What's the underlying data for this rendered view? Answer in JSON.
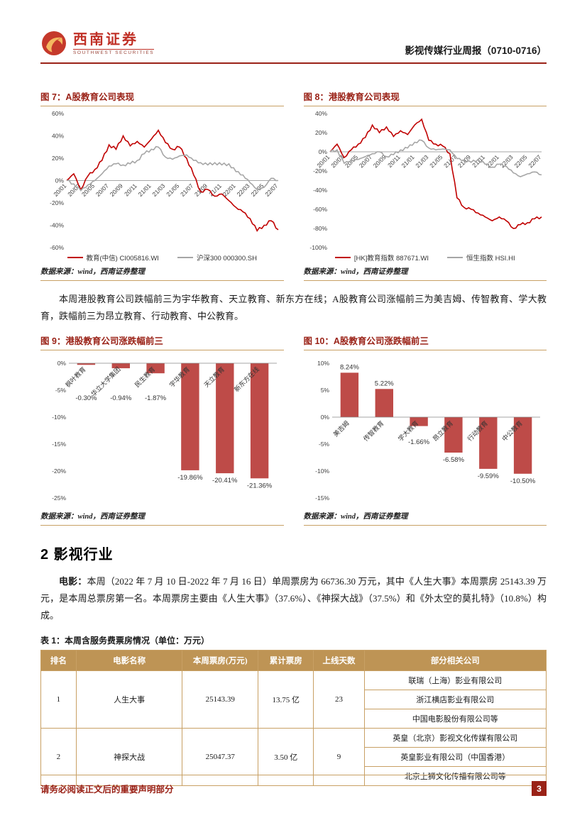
{
  "page": {
    "brand": {
      "name_cn": "西南证券",
      "name_en": "SOUTHWEST SECURITIES"
    },
    "report_title": "影视传媒行业周报（0710-0716）",
    "footer": {
      "disclaimer": "请务必阅读正文后的重要声明部分",
      "page_number": "3"
    }
  },
  "colors": {
    "accent_red": "#9A2217",
    "chart_red": "#C00000",
    "chart_gray": "#A6A6A6",
    "bar_red": "#BE4B48",
    "gold": "#C8A064",
    "table_header_bg": "#BE9455"
  },
  "paragraphs": {
    "education_week": "本周港股教育公司跌幅前三为宇华教育、天立教育、新东方在线；A股教育公司涨幅前三为美吉姆、传智教育、学大教育，跌幅前三为昂立教育、行动教育、中公教育。"
  },
  "sections": {
    "movie": {
      "heading": "2 影视行业",
      "lead": "电影：",
      "text": "本周（2022 年 7 月 10 日-2022 年 7 月 16 日）单周票房为 66736.30 万元，其中《人生大事》本周票房 25143.39 万元，是本周总票房第一名。本周票房主要由《人生大事》（37.6%）、《神探大战》（37.5%）和《外太空的莫扎特》（10.8%）构成。"
    }
  },
  "chart_data": [
    {
      "id": "fig7",
      "type": "line",
      "title": "图 7：A股教育公司表现",
      "source": "数据来源：wind，西南证券整理",
      "ylim": [
        -60,
        60
      ],
      "yticks": [
        60,
        40,
        20,
        0,
        -20,
        -40,
        -60
      ],
      "xtick_labels": [
        "20/01",
        "20/03",
        "20/05",
        "20/07",
        "20/09",
        "20/11",
        "21/01",
        "21/03",
        "21/05",
        "21/07",
        "21/09",
        "21/11",
        "22/01",
        "22/03",
        "22/05",
        "22/07"
      ],
      "legend_position": "bottom",
      "grid": false,
      "series": [
        {
          "name": "教育(中信) CI005816.WI",
          "color": "#C00000",
          "values": [
            0,
            6,
            -8,
            4,
            10,
            18,
            32,
            28,
            40,
            31,
            35,
            30,
            37,
            45,
            34,
            28,
            30,
            20,
            5,
            -10,
            -8,
            -14,
            -12,
            -18,
            -24,
            -28,
            -34,
            -45,
            -40,
            -36,
            -44
          ]
        },
        {
          "name": "沪深300 000300.SH",
          "color": "#A6A6A6",
          "values": [
            0,
            -3,
            -9,
            -4,
            0,
            6,
            13,
            15,
            14,
            15,
            18,
            24,
            28,
            30,
            21,
            19,
            22,
            23,
            18,
            16,
            14,
            16,
            14,
            15,
            8,
            5,
            -2,
            -8,
            -6,
            2,
            0
          ]
        }
      ]
    },
    {
      "id": "fig8",
      "type": "line",
      "title": "图 8：港股教育公司表现",
      "source": "数据来源：wind，西南证券整理",
      "ylim": [
        -100,
        40
      ],
      "yticks": [
        40,
        20,
        0,
        -20,
        -40,
        -60,
        -80,
        -100
      ],
      "xtick_labels": [
        "20/01",
        "20/03",
        "20/05",
        "20/07",
        "20/09",
        "20/11",
        "21/01",
        "21/03",
        "21/05",
        "21/07",
        "21/09",
        "21/11",
        "22/01",
        "22/03",
        "22/05",
        "22/07"
      ],
      "legend_position": "bottom",
      "grid": false,
      "series": [
        {
          "name": "[HK]教育指数 887671.WI",
          "color": "#C00000",
          "values": [
            0,
            8,
            -6,
            2,
            8,
            15,
            28,
            20,
            26,
            16,
            22,
            18,
            28,
            34,
            12,
            8,
            6,
            -2,
            -48,
            -58,
            -60,
            -64,
            -68,
            -72,
            -68,
            -72,
            -80,
            -76,
            -74,
            -70,
            -68
          ]
        },
        {
          "name": "恒生指数 HSI.HI",
          "color": "#A6A6A6",
          "values": [
            0,
            2,
            -12,
            -9,
            -8,
            -5,
            -2,
            0,
            -5,
            -3,
            2,
            4,
            10,
            12,
            4,
            2,
            3,
            2,
            -7,
            -9,
            -11,
            -8,
            -13,
            -16,
            -13,
            -15,
            -22,
            -26,
            -23,
            -21,
            -24
          ]
        }
      ]
    },
    {
      "id": "fig9",
      "type": "bar",
      "title": "图 9：港股教育公司涨跌幅前三",
      "source": "数据来源：wind，西南证券整理",
      "ylim": [
        -25,
        0
      ],
      "yticks": [
        0,
        -5,
        -10,
        -15,
        -20,
        -25
      ],
      "categories": [
        "枫叶教育",
        "华立大学集团",
        "民生教育",
        "宇华教育",
        "天立教育",
        "新东方在线"
      ],
      "values": [
        -0.3,
        -0.94,
        -1.87,
        -19.86,
        -20.41,
        -21.36
      ],
      "labels": [
        "-0.30%",
        "-0.94%",
        "-1.87%",
        "-19.86%",
        "-20.41%",
        "-21.36%"
      ],
      "bar_color": "#BE4B48",
      "neg_label_min": 52,
      "grid": false
    },
    {
      "id": "fig10",
      "type": "bar",
      "title": "图 10：A股教育公司涨跌幅前三",
      "source": "数据来源：wind，西南证券整理",
      "ylim": [
        -15,
        10
      ],
      "yticks": [
        10,
        5,
        0,
        -5,
        -10,
        -15
      ],
      "categories": [
        "美吉姆",
        "传智教育",
        "学大教育",
        "昂立教育",
        "行动教育",
        "中公教育"
      ],
      "values": [
        8.24,
        5.22,
        -1.66,
        -6.58,
        -9.59,
        -10.5
      ],
      "labels": [
        "8.24%",
        "5.22%",
        "-1.66%",
        "-6.58%",
        "-9.59%",
        "-10.50%"
      ],
      "bar_color": "#BE4B48",
      "neg_label_min": 38,
      "grid": false
    }
  ],
  "table1": {
    "title": "表 1：本周含服务费票房情况（单位：万元）",
    "headers": [
      "排名",
      "电影名称",
      "本周票房(万元)",
      "累计票房",
      "上线天数",
      "部分相关公司"
    ],
    "rows": [
      {
        "rank": "1",
        "name": "人生大事",
        "weekly": "25143.39",
        "total": "13.75 亿",
        "days": "23",
        "companies": [
          "联瑞（上海）影业有限公司",
          "浙江横店影业有限公司",
          "中国电影股份有限公司等"
        ]
      },
      {
        "rank": "2",
        "name": "神探大战",
        "weekly": "25047.37",
        "total": "3.50 亿",
        "days": "9",
        "companies": [
          "英皇（北京）影视文化传媒有限公司",
          "英皇影业有限公司（中国香港）",
          "北京上狮文化传播有限公司等"
        ]
      }
    ]
  }
}
